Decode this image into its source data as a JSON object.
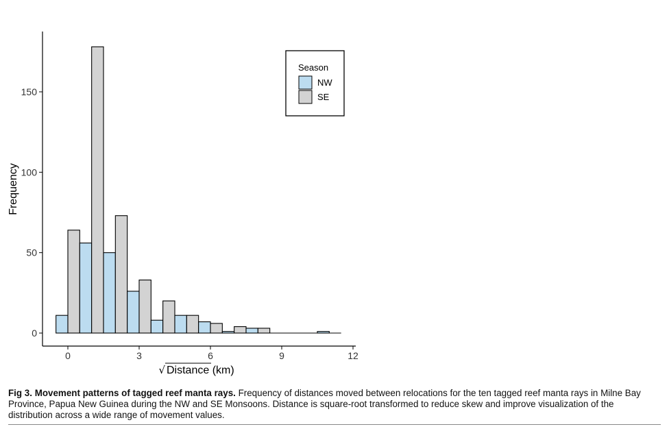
{
  "chart_data": {
    "type": "bar",
    "subtype": "histogram",
    "xlabel": "Distance (km)",
    "xlabel_sqrt": "√",
    "ylabel": "Frequency",
    "xlim": [
      -0.9,
      12
    ],
    "ylim": [
      0,
      180
    ],
    "xticks": [
      0,
      3,
      6,
      9,
      12
    ],
    "yticks": [
      0,
      50,
      100,
      150
    ],
    "bin_width": 1,
    "bin_left_edges": [
      -0.5,
      0.5,
      1.5,
      2.5,
      3.5,
      4.5,
      5.5,
      6.5,
      7.5,
      8.5,
      9.5,
      10.5
    ],
    "grid": false,
    "legend": {
      "title": "Season",
      "position": "top-right",
      "entries": [
        {
          "name": "NW",
          "color": "#bcdcf0"
        },
        {
          "name": "SE",
          "color": "#d3d3d3"
        }
      ]
    },
    "series": [
      {
        "name": "NW",
        "color": "#bcdcf0",
        "values": [
          11,
          56,
          50,
          26,
          8,
          11,
          7,
          1,
          3,
          0,
          0,
          1
        ]
      },
      {
        "name": "SE",
        "color": "#d3d3d3",
        "values": [
          64,
          178,
          73,
          33,
          20,
          11,
          6,
          4,
          3,
          0,
          0,
          0
        ]
      }
    ]
  },
  "caption": {
    "title": "Fig 3.  Movement patterns of tagged reef manta rays.",
    "text": " Frequency of distances moved between relocations for the ten tagged reef manta rays in Milne Bay Province, Papua New Guinea during the NW and SE Monsoons. Distance is square-root transformed to reduce skew and improve visualization of the distribution across a wide range of movement values."
  }
}
